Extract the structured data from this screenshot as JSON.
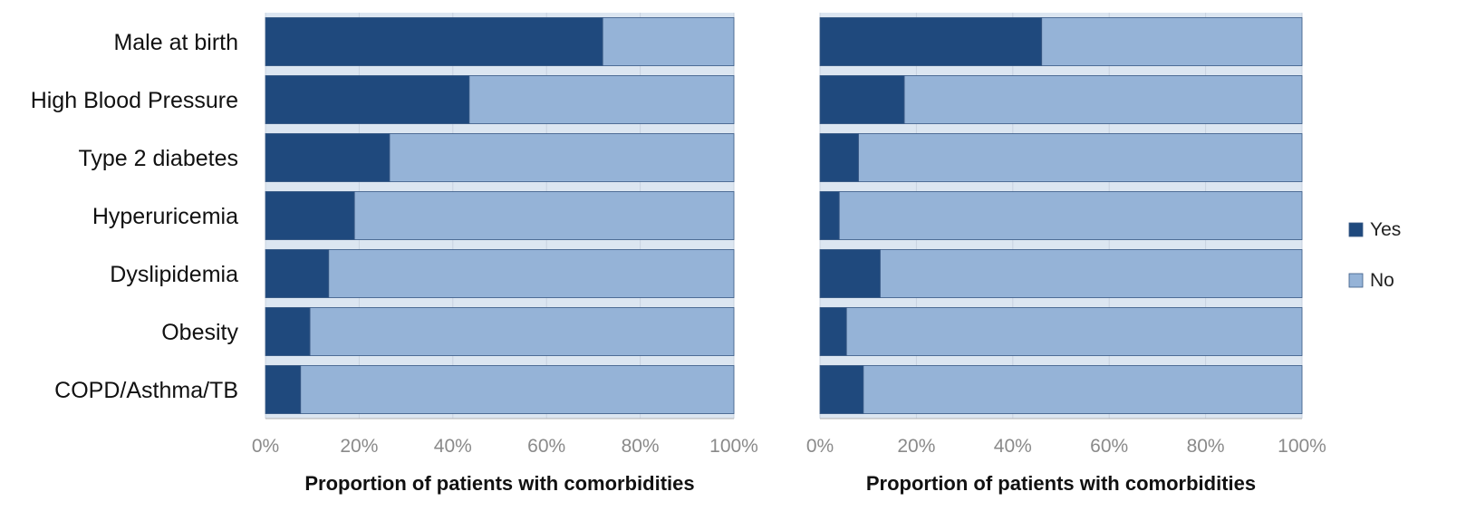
{
  "chart_data": {
    "type": "bar",
    "orientation": "horizontal",
    "stacked": true,
    "normalized": true,
    "categories": [
      "Male at birth",
      "High Blood Pressure",
      "Type 2 diabetes",
      "Hyperuricemia",
      "Dyslipidemia",
      "Obesity",
      "COPD/Asthma/TB"
    ],
    "xlim": [
      0,
      100
    ],
    "x_ticks": [
      "0%",
      "20%",
      "40%",
      "60%",
      "80%",
      "100%"
    ],
    "legend": {
      "placement": "right",
      "entries": [
        {
          "name": "Yes",
          "color": "#1F497D"
        },
        {
          "name": "No",
          "color": "#95B3D7"
        }
      ]
    },
    "colors": {
      "yes": "#1F497D",
      "no": "#95B3D7",
      "panel_bg": "#DCE6F1",
      "grid": "#C8D3E0"
    },
    "panels": [
      {
        "xlabel": "Proportion of patients with comorbidities",
        "series": [
          {
            "name": "Yes",
            "values": [
              72,
              43.5,
              26.5,
              19,
              13.5,
              9.5,
              7.5
            ]
          },
          {
            "name": "No",
            "values": [
              28,
              56.5,
              73.5,
              81,
              86.5,
              90.5,
              92.5
            ]
          }
        ]
      },
      {
        "xlabel": "Proportion of patients with comorbidities",
        "series": [
          {
            "name": "Yes",
            "values": [
              46,
              17.5,
              8,
              4,
              12.5,
              5.5,
              9
            ]
          },
          {
            "name": "No",
            "values": [
              54,
              82.5,
              92,
              96,
              87.5,
              94.5,
              91
            ]
          }
        ]
      }
    ]
  }
}
